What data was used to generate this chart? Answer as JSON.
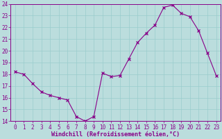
{
  "x": [
    0,
    1,
    2,
    3,
    4,
    5,
    6,
    7,
    8,
    9,
    10,
    11,
    12,
    13,
    14,
    15,
    16,
    17,
    18,
    19,
    20,
    21,
    22,
    23
  ],
  "y": [
    18.2,
    18.0,
    17.2,
    16.5,
    16.2,
    16.0,
    15.8,
    14.4,
    14.0,
    14.4,
    18.1,
    17.8,
    17.9,
    19.3,
    20.7,
    21.5,
    22.2,
    23.7,
    23.9,
    23.2,
    22.9,
    21.7,
    19.8,
    17.9
  ],
  "line_color": "#880088",
  "marker": "x",
  "marker_color": "#880088",
  "bg_color": "#BBDDDD",
  "grid_color": "#99CCCC",
  "xlabel": "Windchill (Refroidissement éolien,°C)",
  "xlabel_color": "#880088",
  "tick_color": "#880088",
  "ylim": [
    14,
    24
  ],
  "yticks": [
    14,
    15,
    16,
    17,
    18,
    19,
    20,
    21,
    22,
    23,
    24
  ],
  "xticks": [
    0,
    1,
    2,
    3,
    4,
    5,
    6,
    7,
    8,
    9,
    10,
    11,
    12,
    13,
    14,
    15,
    16,
    17,
    18,
    19,
    20,
    21,
    22,
    23
  ],
  "axis_line_color": "#880088",
  "font_size": 5.5,
  "xlabel_font_size": 6.0,
  "figsize": [
    3.2,
    2.0
  ],
  "dpi": 100
}
